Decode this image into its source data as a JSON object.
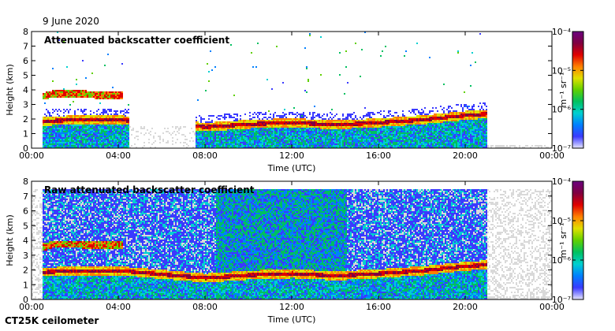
{
  "header": {
    "date": "9 June 2020",
    "instrument": "CT25K ceilometer"
  },
  "colors": {
    "colormap": [
      "#e6e6ff",
      "#3a3aff",
      "#0080ff",
      "#00d0d0",
      "#00c060",
      "#60d000",
      "#e0e000",
      "#ff8000",
      "#e00000",
      "#800040",
      "#6a0080"
    ],
    "no_signal": "#d9d9d9"
  },
  "chart_data": [
    {
      "type": "heatmap",
      "title": "Attenuated backscatter coefficient",
      "xlabel": "Time (UTC)",
      "ylabel": "Height (km)",
      "xticks": [
        "00:00",
        "04:00",
        "08:00",
        "12:00",
        "16:00",
        "20:00",
        "00:00"
      ],
      "yticks": [
        "0",
        "1",
        "2",
        "3",
        "4",
        "5",
        "6",
        "7",
        "8"
      ],
      "ylim": [
        0,
        8
      ],
      "xlim_hours": [
        0,
        24
      ],
      "colorbar": {
        "label": "m⁻¹ sr⁻¹",
        "ticks": [
          "10⁻⁷",
          "10⁻⁶",
          "10⁻⁵",
          "10⁻⁴"
        ],
        "scale": "log"
      },
      "boundary_layer_top_km": [
        [
          0.6,
          1.9
        ],
        [
          2,
          2.0
        ],
        [
          4,
          2.0
        ],
        [
          8,
          1.5
        ],
        [
          10,
          1.7
        ],
        [
          12,
          1.8
        ],
        [
          14,
          1.65
        ],
        [
          16,
          1.8
        ],
        [
          18,
          2.0
        ],
        [
          20,
          2.3
        ],
        [
          21,
          2.4
        ]
      ],
      "cloud_layer_km": [
        [
          0.5,
          3.6
        ],
        [
          1,
          3.8
        ],
        [
          2,
          3.8
        ],
        [
          3,
          3.7
        ],
        [
          4,
          3.7
        ]
      ],
      "data_coverage_hours": [
        [
          0.5,
          4.5
        ],
        [
          7.5,
          21
        ]
      ]
    },
    {
      "type": "heatmap",
      "title": "Raw attenuated backscatter coefficient",
      "xlabel": "Time (UTC)",
      "ylabel": "Height (km)",
      "xticks": [
        "00:00",
        "04:00",
        "08:00",
        "12:00",
        "16:00",
        "20:00",
        "00:00"
      ],
      "yticks": [
        "0",
        "1",
        "2",
        "3",
        "4",
        "5",
        "6",
        "7",
        "8"
      ],
      "ylim": [
        0,
        8
      ],
      "xlim_hours": [
        0,
        24
      ],
      "colorbar": {
        "label": "m⁻¹ sr⁻¹",
        "ticks": [
          "10⁻⁷",
          "10⁻⁶",
          "10⁻⁵",
          "10⁻⁴"
        ],
        "scale": "log"
      },
      "boundary_layer_top_km": [
        [
          0.6,
          1.9
        ],
        [
          2,
          2.0
        ],
        [
          4,
          2.0
        ],
        [
          8,
          1.5
        ],
        [
          10,
          1.7
        ],
        [
          12,
          1.8
        ],
        [
          14,
          1.65
        ],
        [
          16,
          1.8
        ],
        [
          18,
          2.0
        ],
        [
          20,
          2.3
        ],
        [
          21,
          2.4
        ]
      ],
      "cloud_layer_km": [
        [
          0.5,
          3.6
        ],
        [
          1,
          3.8
        ],
        [
          2,
          3.8
        ],
        [
          3,
          3.7
        ],
        [
          4,
          3.7
        ]
      ],
      "data_coverage_hours": [
        [
          0.5,
          21
        ]
      ]
    }
  ]
}
